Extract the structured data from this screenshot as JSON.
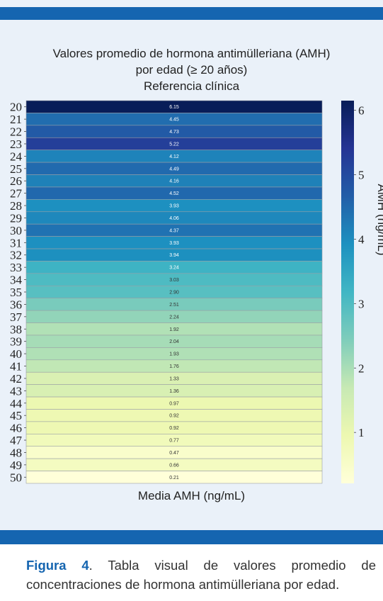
{
  "chart_data": {
    "type": "heatmap",
    "title_lines": [
      "Valores promedio de hormona antimülleriana (AMH)",
      "por edad (≥ 20 años)",
      "Referencia clínica"
    ],
    "xlabel": "Media AMH (ng/mL)",
    "colorbar_label": "AMH (ng/mL)",
    "colorbar_ticks": [
      1,
      2,
      3,
      4,
      5,
      6
    ],
    "colorbar_range": [
      0.21,
      6.15
    ],
    "colormap": "YlGnBu",
    "categories": [
      "20",
      "21",
      "22",
      "23",
      "24",
      "25",
      "26",
      "27",
      "28",
      "29",
      "30",
      "31",
      "32",
      "33",
      "34",
      "35",
      "36",
      "37",
      "38",
      "39",
      "40",
      "41",
      "42",
      "43",
      "44",
      "45",
      "46",
      "47",
      "48",
      "49",
      "50"
    ],
    "values": [
      6.15,
      4.45,
      4.73,
      5.22,
      4.12,
      4.49,
      4.16,
      4.52,
      3.93,
      4.06,
      4.37,
      3.93,
      3.94,
      3.24,
      3.03,
      2.9,
      2.51,
      2.24,
      1.92,
      2.04,
      1.93,
      1.76,
      1.33,
      1.36,
      0.97,
      0.92,
      0.92,
      0.77,
      0.47,
      0.66,
      0.21
    ]
  },
  "caption": {
    "label": "Figura 4",
    "text": ". Tabla visual de valores promedio de concentraciones de hormona antimülleriana por edad."
  }
}
